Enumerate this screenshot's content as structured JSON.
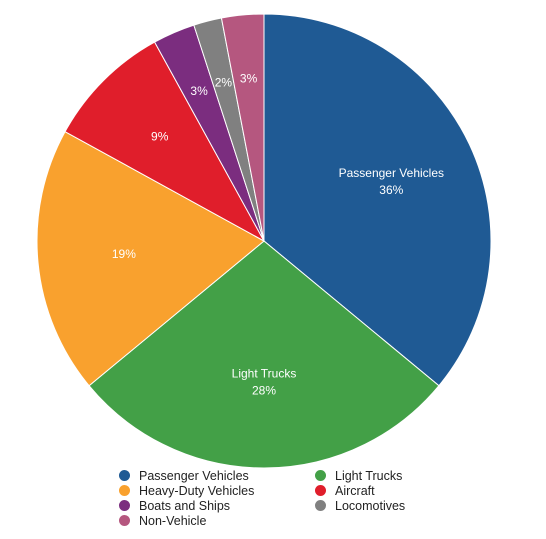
{
  "chart_data": {
    "type": "pie",
    "categories": [
      "Passenger Vehicles",
      "Light Trucks",
      "Heavy-Duty Vehicles",
      "Aircraft",
      "Boats and Ships",
      "Locomotives",
      "Non-Vehicle"
    ],
    "values": [
      36,
      28,
      19,
      9,
      3,
      2,
      3
    ],
    "value_labels": [
      "36%",
      "28%",
      "19%",
      "9%",
      "3%",
      "2%",
      "3%"
    ],
    "colors": [
      "#1f5a94",
      "#43a047",
      "#f9a12e",
      "#e01e2b",
      "#7b2d7f",
      "#808080",
      "#b5577f"
    ],
    "start_angle_deg": 0,
    "direction": "clockwise",
    "legend_position": "bottom",
    "legend_order": [
      "Passenger Vehicles",
      "Light Trucks",
      "Heavy-Duty Vehicles",
      "Aircraft",
      "Boats and Ships",
      "Locomotives",
      "Non-Vehicle"
    ]
  }
}
